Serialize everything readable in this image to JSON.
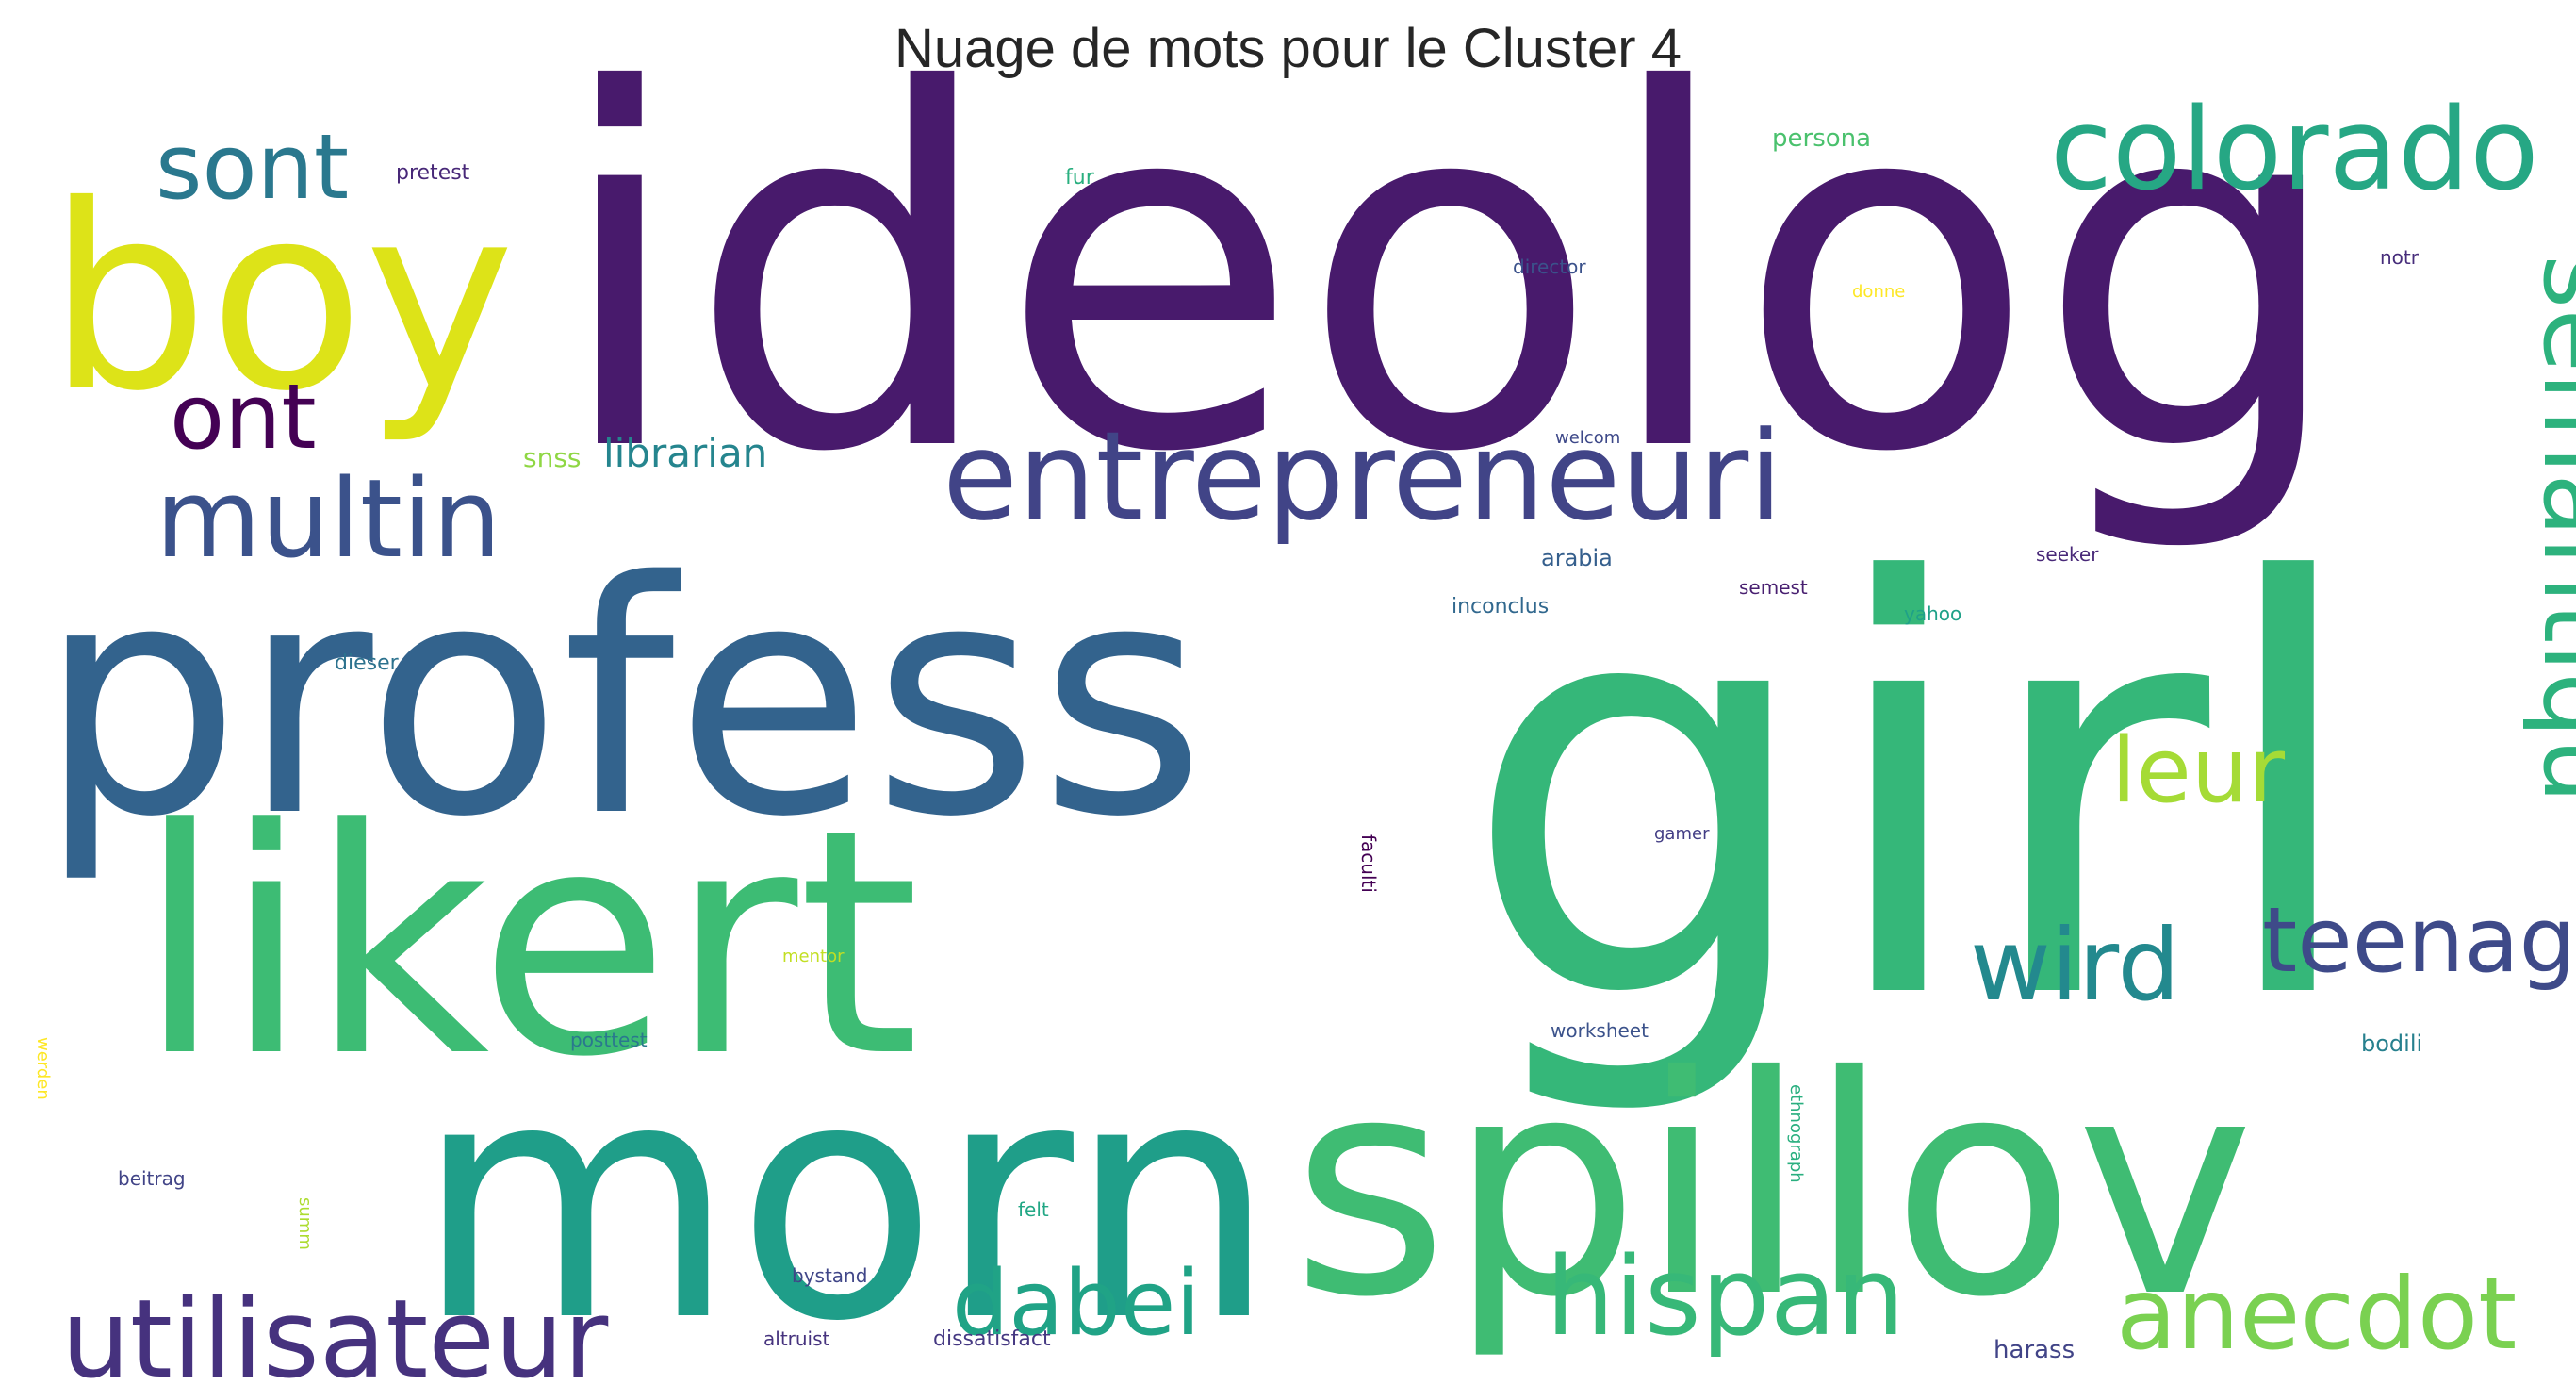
{
  "title": "Nuage de mots pour le Cluster 4",
  "words": [
    {
      "text": "ideolog",
      "color": "#481a6c"
    },
    {
      "text": "profess",
      "color": "#33638d"
    },
    {
      "text": "girl",
      "color": "#35b779"
    },
    {
      "text": "likert",
      "color": "#3dbc74"
    },
    {
      "text": "morn",
      "color": "#1f9e89"
    },
    {
      "text": "spillov",
      "color": "#3fbc73"
    },
    {
      "text": "boy",
      "color": "#dde318"
    },
    {
      "text": "colorado",
      "color": "#26a784"
    },
    {
      "text": "entrepreneuri",
      "color": "#414487"
    },
    {
      "text": "sont",
      "color": "#2a788e"
    },
    {
      "text": "ont",
      "color": "#440154"
    },
    {
      "text": "multin",
      "color": "#3b528b"
    },
    {
      "text": "semantiqu",
      "color": "#2db27d"
    },
    {
      "text": "leur",
      "color": "#a5db36"
    },
    {
      "text": "wird",
      "color": "#23898e"
    },
    {
      "text": "teenag",
      "color": "#3e4a89"
    },
    {
      "text": "utilisateur",
      "color": "#46327e"
    },
    {
      "text": "dabei",
      "color": "#20a386"
    },
    {
      "text": "hispan",
      "color": "#37b878"
    },
    {
      "text": "anecdot",
      "color": "#7ad151"
    },
    {
      "text": "librarian",
      "color": "#25858e"
    },
    {
      "text": "snss",
      "color": "#8fd744"
    },
    {
      "text": "pretest",
      "color": "#482878"
    },
    {
      "text": "fur",
      "color": "#29af7f"
    },
    {
      "text": "persona",
      "color": "#4ac16d"
    },
    {
      "text": "director",
      "color": "#3b528b"
    },
    {
      "text": "donne",
      "color": "#fde725"
    },
    {
      "text": "notr",
      "color": "#472d7b"
    },
    {
      "text": "welcom",
      "color": "#3e4989"
    },
    {
      "text": "arabia",
      "color": "#355f8d"
    },
    {
      "text": "seeker",
      "color": "#482878"
    },
    {
      "text": "semest",
      "color": "#481f70"
    },
    {
      "text": "inconclus",
      "color": "#31688e"
    },
    {
      "text": "yahoo",
      "color": "#1fa188"
    },
    {
      "text": "dieser",
      "color": "#2c728e"
    },
    {
      "text": "gamer",
      "color": "#433e85"
    },
    {
      "text": "faculti",
      "color": "#440154"
    },
    {
      "text": "mentor",
      "color": "#c2df23"
    },
    {
      "text": "werden",
      "color": "#fde725"
    },
    {
      "text": "posttest",
      "color": "#2a788e"
    },
    {
      "text": "worksheet",
      "color": "#3b528b"
    },
    {
      "text": "bodili",
      "color": "#27808e"
    },
    {
      "text": "ethnograph",
      "color": "#29af7f"
    },
    {
      "text": "beitrag",
      "color": "#414487"
    },
    {
      "text": "summ",
      "color": "#addc30"
    },
    {
      "text": "felt",
      "color": "#22a785"
    },
    {
      "text": "bystand",
      "color": "#404688"
    },
    {
      "text": "altruist",
      "color": "#46337e"
    },
    {
      "text": "dissatisfact",
      "color": "#453882"
    },
    {
      "text": "harass",
      "color": "#414487"
    }
  ]
}
